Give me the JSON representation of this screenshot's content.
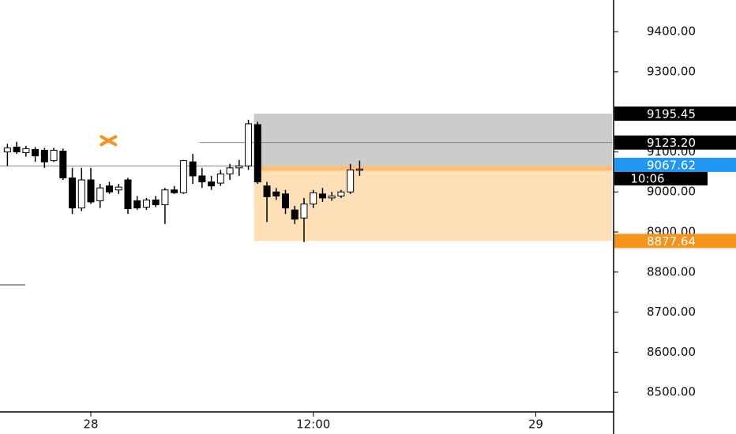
{
  "chart_data": {
    "type": "candlestick",
    "x": [
      -4.5,
      -4,
      -3.5,
      -3,
      -2.5,
      -2,
      -1.5,
      -1,
      -0.5,
      0,
      0.5,
      1,
      1.5,
      2,
      2.5,
      3,
      3.5,
      4,
      4.5,
      5,
      5.5,
      6,
      6.5,
      7,
      7.5,
      8,
      8.5,
      9,
      9.5,
      10,
      10.5,
      11,
      11.5,
      12,
      12.5,
      13,
      13.5,
      14,
      14.5
    ],
    "open": [
      9100,
      9112,
      9098,
      9106,
      9104,
      9078,
      9102,
      9035,
      8960,
      9030,
      8978,
      9015,
      9005,
      9030,
      8978,
      8962,
      8980,
      8968,
      9005,
      8998,
      9075,
      9040,
      9025,
      9022,
      9045,
      9060,
      9065,
      9168,
      9015,
      9000,
      8995,
      8955,
      8935,
      8970,
      8995,
      8985,
      8990,
      9000,
      9055
    ],
    "high": [
      9120,
      9125,
      9115,
      9112,
      9110,
      9110,
      9108,
      9060,
      9060,
      9060,
      9020,
      9025,
      9020,
      9035,
      8990,
      8985,
      8990,
      9010,
      9015,
      9080,
      9095,
      9060,
      9040,
      9055,
      9070,
      9080,
      9180,
      9175,
      9025,
      9010,
      9005,
      8965,
      8985,
      9005,
      9010,
      9000,
      9005,
      9070,
      9078
    ],
    "low": [
      9065,
      9095,
      9088,
      9075,
      9060,
      9075,
      9030,
      8945,
      8952,
      8970,
      8960,
      8995,
      8995,
      8945,
      8955,
      8955,
      8962,
      8920,
      8995,
      8995,
      9020,
      9010,
      9005,
      9015,
      9030,
      9040,
      9055,
      9020,
      8925,
      8980,
      8945,
      8920,
      8875,
      8960,
      8975,
      8978,
      8985,
      8995,
      9040
    ],
    "close": [
      9110,
      9100,
      9108,
      9090,
      9075,
      9104,
      9035,
      8960,
      9030,
      8975,
      9010,
      9000,
      9012,
      8958,
      8960,
      8980,
      8968,
      9005,
      8998,
      9078,
      9040,
      9025,
      9015,
      9045,
      9060,
      9065,
      9170,
      9025,
      8988,
      8990,
      8960,
      8932,
      8970,
      8998,
      8985,
      8990,
      9000,
      9055,
      9057
    ],
    "up_color": "#ffffff",
    "down_color": "#000000",
    "xlim": [
      -4.9,
      28.2
    ],
    "ylim": [
      8451,
      9479
    ],
    "xticks": [
      {
        "value": 0,
        "label": "28"
      },
      {
        "value": 12,
        "label": "12:00"
      },
      {
        "value": 24,
        "label": "29"
      }
    ],
    "yticks": [
      {
        "value": 8500,
        "label": "8500.00"
      },
      {
        "value": 8600,
        "label": "8600.00"
      },
      {
        "value": 8700,
        "label": "8700.00"
      },
      {
        "value": 8800,
        "label": "8800.00"
      },
      {
        "value": 8900,
        "label": "8900.00"
      },
      {
        "value": 9000,
        "label": "9000.00"
      },
      {
        "value": 9100,
        "label": "9100.00"
      },
      {
        "value": 9200,
        "label": "9200.00"
      },
      {
        "value": 9300,
        "label": "9300.00"
      },
      {
        "value": 9400,
        "label": "9400.00"
      }
    ],
    "zones": [
      {
        "x": 8.8,
        "top": 9195.45,
        "bottom": 9065,
        "color": "#cccccc"
      },
      {
        "x": 8.8,
        "top": 9065,
        "bottom": 8877.64,
        "color": "#fde0b8"
      }
    ],
    "lines": [
      {
        "x": [
          -4.9,
          8.8
        ],
        "value": 9065,
        "color": "#888888",
        "width": 1
      },
      {
        "x": [
          5.87,
          28.2
        ],
        "value": 9123.2,
        "color": "#888888",
        "width": 1
      },
      {
        "x": [
          8.8,
          28.2
        ],
        "value": 9059,
        "color": "#fbbf74",
        "width": 6
      }
    ],
    "marker": {
      "x": 0.95,
      "y": 9128,
      "color": "#f7931a"
    },
    "price_labels": [
      {
        "value": 9195.45,
        "label": "9195.45",
        "color": "#000000"
      },
      {
        "value": 9123.2,
        "label": "9123.20",
        "color": "#000000"
      },
      {
        "value": 9067.62,
        "label": "9067.62",
        "color": "#2196f3"
      },
      {
        "value": 8877.64,
        "label": "8877.64",
        "color": "#f7931a"
      }
    ],
    "countdown": "10:06"
  }
}
